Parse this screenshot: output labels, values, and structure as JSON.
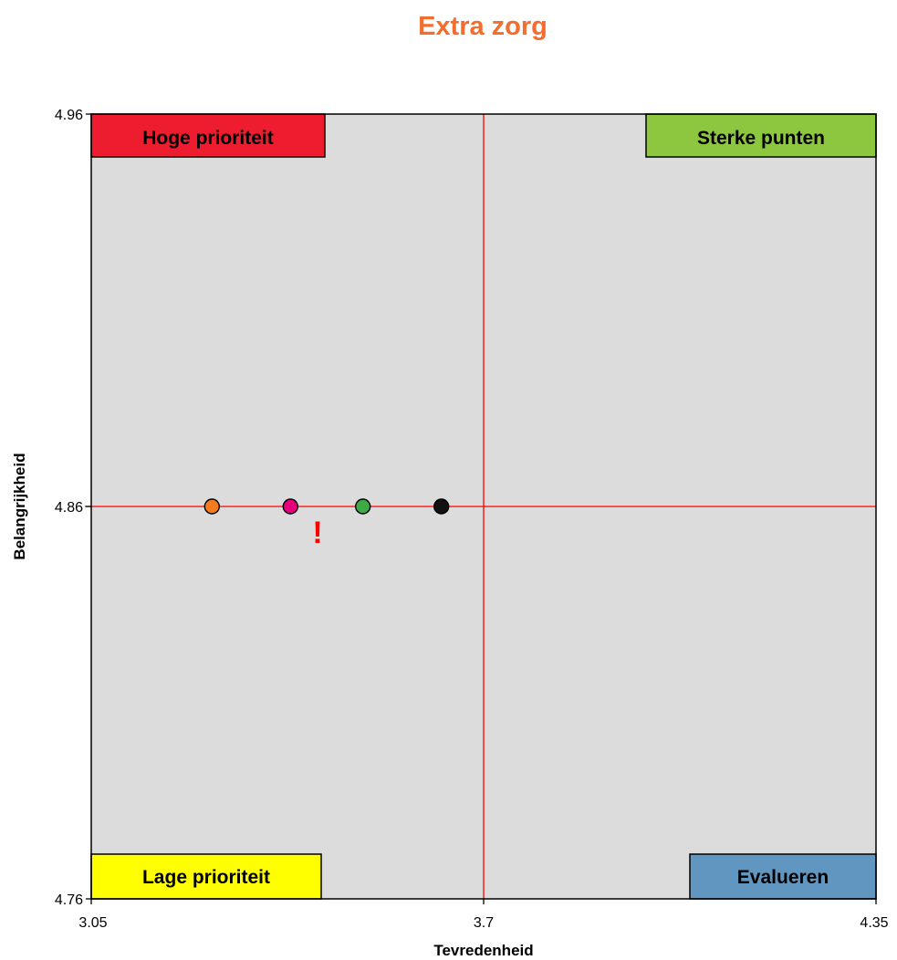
{
  "chart_data": {
    "type": "scatter",
    "title": "Extra zorg",
    "xlabel": "Tevredenheid",
    "ylabel": "Belangrijkheid",
    "xlim": [
      3.05,
      4.35
    ],
    "ylim": [
      4.76,
      4.96
    ],
    "x_ticks": [
      "3.05",
      "3.7",
      "4.35"
    ],
    "y_ticks": [
      "4.96",
      "4.86",
      "4.76"
    ],
    "reference_lines": {
      "x": 3.7,
      "y": 4.86
    },
    "grid": false,
    "legend": "none",
    "quadrants": {
      "top_left": {
        "label": "Hoge prioriteit",
        "color": "#ed1c2e"
      },
      "top_right": {
        "label": "Sterke punten",
        "color": "#8dc63f"
      },
      "bottom_left": {
        "label": "Lage prioriteit",
        "color": "#ffff00"
      },
      "bottom_right": {
        "label": "Evalueren",
        "color": "#6096c0"
      }
    },
    "points": [
      {
        "x": 3.25,
        "y": 4.86,
        "color": "#f47b20"
      },
      {
        "x": 3.38,
        "y": 4.86,
        "color": "#e6007e"
      },
      {
        "x": 3.5,
        "y": 4.86,
        "color": "#3daa46"
      },
      {
        "x": 3.63,
        "y": 4.86,
        "color": "#111111"
      }
    ],
    "annotation": {
      "text": "!",
      "x": 3.425,
      "y": 4.857,
      "color": "#ff0000"
    }
  },
  "colors": {
    "title": "#f26d2e",
    "plot_background": "#dcdcdc",
    "reference_line": "#ff0000"
  }
}
